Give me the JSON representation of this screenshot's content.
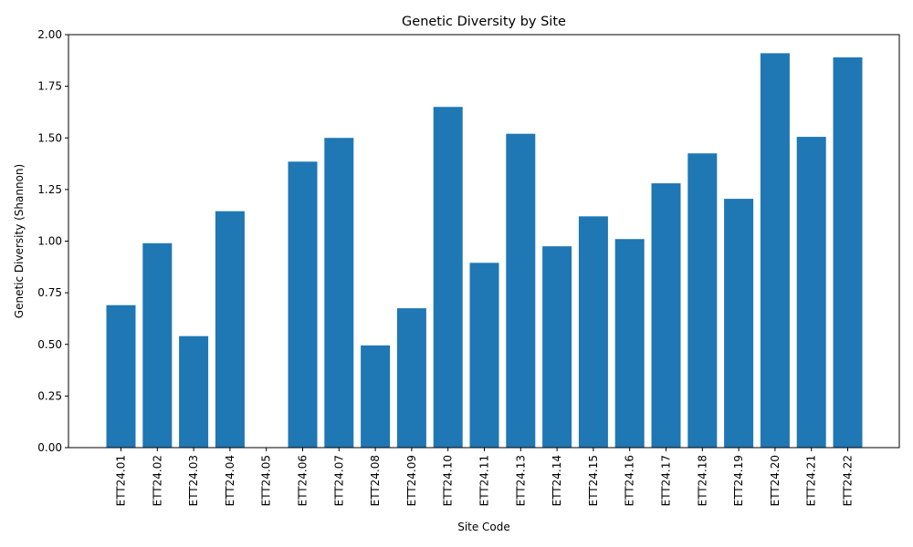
{
  "chart_data": {
    "type": "bar",
    "title": "Genetic Diversity by Site",
    "xlabel": "Site Code",
    "ylabel": "Genetic Diversity (Shannon)",
    "ylim": [
      0,
      2.0
    ],
    "yticks": [
      "0.00",
      "0.25",
      "0.50",
      "0.75",
      "1.00",
      "1.25",
      "1.50",
      "1.75",
      "2.00"
    ],
    "grid": false,
    "bar_color": "#1f77b4",
    "categories": [
      "ETT24.01",
      "ETT24.02",
      "ETT24.03",
      "ETT24.04",
      "ETT24.05",
      "ETT24.06",
      "ETT24.07",
      "ETT24.08",
      "ETT24.09",
      "ETT24.10",
      "ETT24.11",
      "ETT24.13",
      "ETT24.14",
      "ETT24.15",
      "ETT24.16",
      "ETT24.17",
      "ETT24.18",
      "ETT24.19",
      "ETT24.20",
      "ETT24.21",
      "ETT24.22"
    ],
    "values": [
      0.69,
      0.99,
      0.54,
      1.145,
      0.0,
      1.385,
      1.5,
      0.495,
      0.675,
      1.65,
      0.895,
      1.52,
      0.975,
      1.12,
      1.01,
      1.28,
      1.425,
      1.205,
      1.91,
      1.505,
      1.89
    ]
  }
}
